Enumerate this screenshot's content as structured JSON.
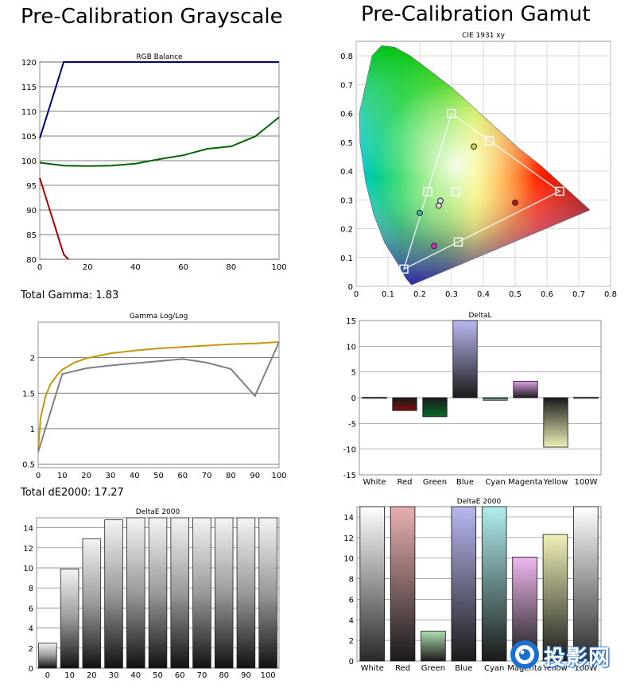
{
  "headings": {
    "left": "Pre-Calibration Grayscale",
    "right": "Pre-Calibration Gamut"
  },
  "stats": {
    "total_gamma": "Total Gamma: 1.83",
    "total_de": "Total dE2000: 17.27"
  },
  "watermark": {
    "text": "投影网",
    "icon": "lens-logo-icon"
  },
  "chart_data": [
    {
      "id": "rgb",
      "type": "line",
      "title": "RGB Balance",
      "xlim": [
        0,
        100
      ],
      "ylim": [
        80,
        120
      ],
      "xticks": [
        0,
        20,
        40,
        60,
        80,
        100
      ],
      "yticks": [
        80,
        85,
        90,
        95,
        100,
        105,
        110,
        115,
        120
      ],
      "grid": true,
      "series": [
        {
          "color": "#00007f",
          "x": [
            0,
            10,
            100
          ],
          "y": [
            104.5,
            120,
            120
          ]
        },
        {
          "color": "#006400",
          "x": [
            0,
            10,
            20,
            30,
            40,
            50,
            60,
            70,
            80,
            90,
            100
          ],
          "y": [
            99.6,
            99,
            98.9,
            99,
            99.4,
            100.3,
            101.1,
            102.4,
            102.9,
            104.9,
            108.8
          ]
        },
        {
          "color": "#b00000",
          "x": [
            0,
            10,
            12
          ],
          "y": [
            96.5,
            81,
            80
          ]
        }
      ]
    },
    {
      "id": "gamma",
      "type": "line",
      "title": "Gamma Log/Log",
      "xlim": [
        0,
        100
      ],
      "ylim": [
        0.45,
        2.5
      ],
      "xticks": [
        0,
        10,
        20,
        30,
        40,
        50,
        60,
        70,
        80,
        90,
        100
      ],
      "yticks": [
        0.5,
        1,
        1.5,
        2
      ],
      "ytick_labels": [
        "0.5",
        "1",
        "1.5",
        "2"
      ],
      "grid": true,
      "series": [
        {
          "color": "#c8960a",
          "x": [
            0,
            1,
            3,
            5,
            8,
            10,
            15,
            20,
            30,
            40,
            50,
            60,
            70,
            80,
            90,
            100
          ],
          "y": [
            0.7,
            1.15,
            1.45,
            1.62,
            1.76,
            1.83,
            1.93,
            1.99,
            2.06,
            2.1,
            2.13,
            2.15,
            2.17,
            2.19,
            2.2,
            2.22
          ]
        },
        {
          "color": "#808080",
          "x": [
            0,
            10,
            20,
            30,
            40,
            50,
            60,
            70,
            80,
            90,
            100
          ],
          "y": [
            0.67,
            1.77,
            1.85,
            1.89,
            1.92,
            1.95,
            1.98,
            1.93,
            1.84,
            1.46,
            2.22
          ]
        }
      ]
    },
    {
      "id": "de_gray",
      "type": "bar",
      "title": "DeltaE 2000",
      "categories": [
        "0",
        "10",
        "20",
        "30",
        "40",
        "50",
        "60",
        "70",
        "80",
        "90",
        "100"
      ],
      "values": [
        2.5,
        9.9,
        12.9,
        14.8,
        15,
        15,
        15,
        15,
        15,
        15,
        15
      ],
      "ylim": [
        0,
        15
      ],
      "yticks": [
        0,
        2,
        4,
        6,
        8,
        10,
        12,
        14
      ],
      "grid": true
    },
    {
      "id": "cie",
      "type": "scatter",
      "title": "CIE 1931 xy",
      "xlim": [
        0,
        0.8
      ],
      "ylim": [
        0,
        0.85
      ],
      "xticks": [
        0,
        0.1,
        0.2,
        0.3,
        0.4,
        0.5,
        0.6,
        0.7,
        0.8
      ],
      "yticks": [
        0,
        0.1,
        0.2,
        0.3,
        0.4,
        0.5,
        0.6,
        0.7,
        0.8
      ],
      "grid": true,
      "targets": [
        [
          0.64,
          0.33
        ],
        [
          0.3,
          0.6
        ],
        [
          0.15,
          0.06
        ],
        [
          0.225,
          0.329
        ],
        [
          0.321,
          0.154
        ],
        [
          0.419,
          0.505
        ],
        [
          0.3127,
          0.329
        ]
      ],
      "measured": [
        {
          "x": 0.5,
          "y": 0.29,
          "color": "#cc1010"
        },
        {
          "x": 0.37,
          "y": 0.485,
          "color": "#c8e040"
        },
        {
          "x": 0.2,
          "y": 0.255,
          "color": "#40b0b0"
        },
        {
          "x": 0.245,
          "y": 0.14,
          "color": "#d030c0"
        },
        {
          "x": 0.26,
          "y": 0.28,
          "color": "#dddddd"
        },
        {
          "x": 0.265,
          "y": 0.297,
          "color": "#dddddd"
        }
      ]
    },
    {
      "id": "delta_l",
      "type": "bar",
      "title": "DeltaL",
      "categories": [
        "White",
        "Red",
        "Green",
        "Blue",
        "Cyan",
        "Magenta",
        "Yellow",
        "100W"
      ],
      "values": [
        0.1,
        -2.5,
        -3.7,
        15,
        -0.5,
        3.2,
        -9.6,
        0.1
      ],
      "colors": [
        "#ffffff",
        "#7a1010",
        "#0a6a2a",
        "#b8b8f0",
        "#aae8e8",
        "#e0a0e8",
        "#f0f0b8",
        "#ffffff"
      ],
      "ylim": [
        -15,
        15
      ],
      "yticks": [
        -15,
        -10,
        -5,
        0,
        5,
        10,
        15
      ],
      "grid": true
    },
    {
      "id": "de_gamut",
      "type": "bar",
      "title": "DeltaE 2000",
      "categories": [
        "White",
        "Red",
        "Green",
        "Blue",
        "Cyan",
        "Magenta",
        "Yellow",
        "100W"
      ],
      "values": [
        15,
        15,
        2.9,
        15,
        15,
        10.1,
        12.3,
        15
      ],
      "colors": [
        "#f2f2f2",
        "#e8b0b0",
        "#b0e0b0",
        "#b8b8f0",
        "#b0eeee",
        "#f0b8f0",
        "#f0f0b8",
        "#f2f2f2"
      ],
      "ylim": [
        0,
        15
      ],
      "yticks": [
        0,
        2,
        4,
        6,
        8,
        10,
        12,
        14
      ],
      "grid": true
    }
  ]
}
